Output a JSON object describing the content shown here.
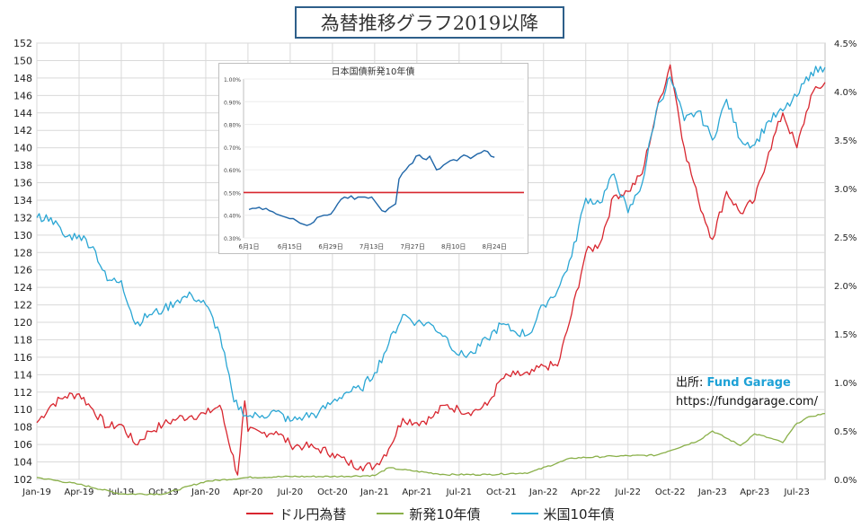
{
  "title": "為替推移グラフ2019以降",
  "source": {
    "prefix": "出所:",
    "brand": "Fund Garage",
    "url": "https://fundgarage.com/"
  },
  "colors": {
    "usdjpy": "#d8262f",
    "jgb10": "#8ab04a",
    "ust10": "#2aa6d4",
    "inset_line": "#1f66a8",
    "inset_ref": "#d8262f",
    "grid": "#d9d9d9"
  },
  "chart_data": [
    {
      "type": "line",
      "title": "為替推移グラフ2019以降",
      "x_ticks": [
        "Jan-19",
        "Apr-19",
        "Jul-19",
        "Oct-19",
        "Jan-20",
        "Apr-20",
        "Jul-20",
        "Oct-20",
        "Jan-21",
        "Apr-21",
        "Jul-21",
        "Oct-21",
        "Jan-22",
        "Apr-22",
        "Jul-22",
        "Oct-22",
        "Jan-23",
        "Apr-23",
        "Jul-23"
      ],
      "x_range": [
        "2019-01",
        "2023-09"
      ],
      "y_left": {
        "ticks": [
          102,
          104,
          106,
          108,
          110,
          112,
          114,
          116,
          118,
          120,
          122,
          124,
          126,
          128,
          130,
          132,
          134,
          136,
          138,
          140,
          142,
          144,
          146,
          148,
          150,
          152
        ],
        "range": [
          102,
          152
        ]
      },
      "y_right": {
        "ticks": [
          "0.0%",
          "0.5%",
          "1.0%",
          "1.5%",
          "2.0%",
          "2.5%",
          "3.0%",
          "3.5%",
          "4.0%",
          "4.5%"
        ],
        "range": [
          0.0,
          4.5
        ]
      },
      "grid": true,
      "legend": "bottom",
      "series": [
        {
          "name": "ドル円為替",
          "axis": "left",
          "color": "#d8262f",
          "points": [
            [
              "2019-01",
              108.5
            ],
            [
              "2019-02",
              110.5
            ],
            [
              "2019-03",
              111.5
            ],
            [
              "2019-04",
              111.8
            ],
            [
              "2019-05",
              110.0
            ],
            [
              "2019-06",
              108.0
            ],
            [
              "2019-07",
              108.3
            ],
            [
              "2019-08",
              106.0
            ],
            [
              "2019-09",
              107.5
            ],
            [
              "2019-10",
              108.3
            ],
            [
              "2019-11",
              109.0
            ],
            [
              "2019-12",
              109.3
            ],
            [
              "2020-01",
              109.5
            ],
            [
              "2020-02",
              110.5
            ],
            [
              "2020-03-09",
              102.5
            ],
            [
              "2020-03-24",
              111.0
            ],
            [
              "2020-04",
              107.5
            ],
            [
              "2020-05",
              107.3
            ],
            [
              "2020-06",
              107.5
            ],
            [
              "2020-07",
              106.0
            ],
            [
              "2020-08",
              105.8
            ],
            [
              "2020-09",
              105.5
            ],
            [
              "2020-10",
              105.0
            ],
            [
              "2020-11",
              104.0
            ],
            [
              "2020-12",
              103.5
            ],
            [
              "2021-01",
              103.5
            ],
            [
              "2021-02",
              105.5
            ],
            [
              "2021-03",
              109.0
            ],
            [
              "2021-04",
              108.5
            ],
            [
              "2021-05",
              109.0
            ],
            [
              "2021-06",
              110.5
            ],
            [
              "2021-07",
              110.0
            ],
            [
              "2021-08",
              109.8
            ],
            [
              "2021-09",
              110.5
            ],
            [
              "2021-10",
              113.5
            ],
            [
              "2021-11",
              114.0
            ],
            [
              "2021-12",
              114.0
            ],
            [
              "2022-01",
              115.0
            ],
            [
              "2022-02",
              115.0
            ],
            [
              "2022-03",
              121.0
            ],
            [
              "2022-04",
              128.0
            ],
            [
              "2022-05",
              129.0
            ],
            [
              "2022-06",
              134.5
            ],
            [
              "2022-07",
              135.0
            ],
            [
              "2022-08",
              137.0
            ],
            [
              "2022-09",
              144.0
            ],
            [
              "2022-10",
              149.5
            ],
            [
              "2022-11",
              140.0
            ],
            [
              "2022-12",
              134.0
            ],
            [
              "2023-01",
              129.5
            ],
            [
              "2023-02",
              135.0
            ],
            [
              "2023-03",
              132.5
            ],
            [
              "2023-04",
              134.0
            ],
            [
              "2023-05",
              139.5
            ],
            [
              "2023-06",
              144.0
            ],
            [
              "2023-07",
              140.0
            ],
            [
              "2023-08",
              146.0
            ],
            [
              "2023-09",
              147.5
            ]
          ]
        },
        {
          "name": "新発10年債",
          "axis": "right",
          "color": "#8ab04a",
          "points": [
            [
              "2019-01",
              0.02
            ],
            [
              "2019-04",
              -0.05
            ],
            [
              "2019-07",
              -0.15
            ],
            [
              "2019-10",
              -0.15
            ],
            [
              "2020-01",
              -0.02
            ],
            [
              "2020-04",
              0.02
            ],
            [
              "2020-07",
              0.03
            ],
            [
              "2020-10",
              0.03
            ],
            [
              "2021-01",
              0.04
            ],
            [
              "2021-02",
              0.12
            ],
            [
              "2021-03",
              0.1
            ],
            [
              "2021-06",
              0.05
            ],
            [
              "2021-09",
              0.05
            ],
            [
              "2021-12",
              0.07
            ],
            [
              "2022-03",
              0.22
            ],
            [
              "2022-06",
              0.24
            ],
            [
              "2022-09",
              0.25
            ],
            [
              "2022-12",
              0.4
            ],
            [
              "2023-01",
              0.5
            ],
            [
              "2023-03",
              0.35
            ],
            [
              "2023-04",
              0.47
            ],
            [
              "2023-05",
              0.43
            ],
            [
              "2023-06",
              0.38
            ],
            [
              "2023-07",
              0.58
            ],
            [
              "2023-08",
              0.65
            ],
            [
              "2023-09",
              0.68
            ]
          ]
        },
        {
          "name": "米国10年債",
          "axis": "right",
          "color": "#2aa6d4",
          "points": [
            [
              "2019-01",
              2.7
            ],
            [
              "2019-02",
              2.7
            ],
            [
              "2019-03",
              2.5
            ],
            [
              "2019-04",
              2.52
            ],
            [
              "2019-05",
              2.4
            ],
            [
              "2019-06",
              2.05
            ],
            [
              "2019-07",
              2.05
            ],
            [
              "2019-08",
              1.6
            ],
            [
              "2019-09",
              1.7
            ],
            [
              "2019-10",
              1.75
            ],
            [
              "2019-11",
              1.85
            ],
            [
              "2019-12",
              1.9
            ],
            [
              "2020-01",
              1.8
            ],
            [
              "2020-02",
              1.5
            ],
            [
              "2020-03",
              0.8
            ],
            [
              "2020-04",
              0.65
            ],
            [
              "2020-05",
              0.66
            ],
            [
              "2020-06",
              0.7
            ],
            [
              "2020-07",
              0.6
            ],
            [
              "2020-08",
              0.65
            ],
            [
              "2020-09",
              0.68
            ],
            [
              "2020-10",
              0.8
            ],
            [
              "2020-11",
              0.9
            ],
            [
              "2020-12",
              0.93
            ],
            [
              "2021-01",
              1.1
            ],
            [
              "2021-02",
              1.4
            ],
            [
              "2021-03",
              1.7
            ],
            [
              "2021-04",
              1.62
            ],
            [
              "2021-05",
              1.6
            ],
            [
              "2021-06",
              1.48
            ],
            [
              "2021-07",
              1.28
            ],
            [
              "2021-08",
              1.3
            ],
            [
              "2021-09",
              1.45
            ],
            [
              "2021-10",
              1.6
            ],
            [
              "2021-11",
              1.52
            ],
            [
              "2021-12",
              1.5
            ],
            [
              "2022-01",
              1.8
            ],
            [
              "2022-02",
              1.95
            ],
            [
              "2022-03",
              2.3
            ],
            [
              "2022-04",
              2.9
            ],
            [
              "2022-05",
              2.85
            ],
            [
              "2022-06",
              3.15
            ],
            [
              "2022-07",
              2.75
            ],
            [
              "2022-08",
              3.05
            ],
            [
              "2022-09",
              3.8
            ],
            [
              "2022-10",
              4.15
            ],
            [
              "2022-11",
              3.7
            ],
            [
              "2022-12",
              3.8
            ],
            [
              "2023-01",
              3.5
            ],
            [
              "2023-02",
              3.92
            ],
            [
              "2023-03",
              3.5
            ],
            [
              "2023-04",
              3.45
            ],
            [
              "2023-05",
              3.7
            ],
            [
              "2023-06",
              3.8
            ],
            [
              "2023-07",
              3.95
            ],
            [
              "2023-08",
              4.2
            ],
            [
              "2023-09",
              4.25
            ]
          ]
        }
      ]
    },
    {
      "type": "line",
      "title": "日本国債新発10年債",
      "x_ticks": [
        "6月1日",
        "6月15日",
        "6月29日",
        "7月13日",
        "7月27日",
        "8月10日",
        "8月24日"
      ],
      "y_ticks": [
        "0.30%",
        "0.40%",
        "0.50%",
        "0.60%",
        "0.70%",
        "0.80%",
        "0.90%",
        "1.00%"
      ],
      "y_range": [
        0.3,
        1.0
      ],
      "reference_line": {
        "value": 0.5,
        "color": "#d8262f"
      },
      "values": [
        0.425,
        0.43,
        0.43,
        0.435,
        0.425,
        0.43,
        0.42,
        0.415,
        0.405,
        0.4,
        0.395,
        0.39,
        0.385,
        0.385,
        0.375,
        0.365,
        0.36,
        0.355,
        0.36,
        0.37,
        0.39,
        0.395,
        0.4,
        0.4,
        0.405,
        0.425,
        0.45,
        0.47,
        0.48,
        0.475,
        0.485,
        0.47,
        0.48,
        0.48,
        0.48,
        0.475,
        0.48,
        0.46,
        0.44,
        0.42,
        0.415,
        0.43,
        0.44,
        0.45,
        0.56,
        0.585,
        0.6,
        0.62,
        0.63,
        0.66,
        0.665,
        0.65,
        0.645,
        0.66,
        0.63,
        0.6,
        0.605,
        0.62,
        0.63,
        0.64,
        0.645,
        0.64,
        0.655,
        0.665,
        0.66,
        0.65,
        0.66,
        0.67,
        0.675,
        0.685,
        0.68,
        0.66,
        0.655
      ]
    }
  ],
  "inset_title": "日本国債新発10年債"
}
